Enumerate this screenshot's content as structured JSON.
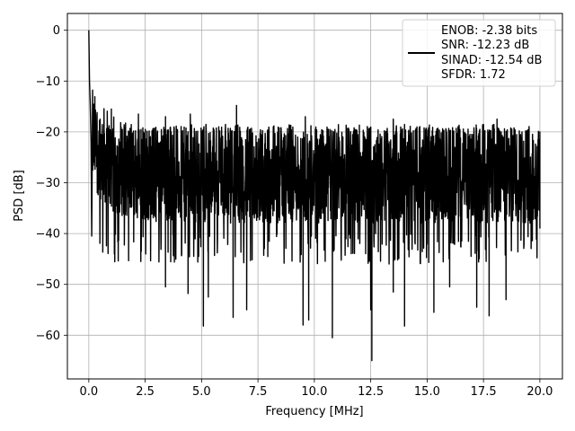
{
  "chart_data": {
    "type": "line",
    "title": "",
    "xlabel": "Frequency [MHz]",
    "ylabel": "PSD [dB]",
    "xlim": [
      -0.95,
      21.0
    ],
    "ylim": [
      -68.6,
      3.3
    ],
    "grid": true,
    "legend_position": "top-right",
    "xticks": [
      0.0,
      2.5,
      5.0,
      7.5,
      10.0,
      12.5,
      15.0,
      17.5,
      20.0
    ],
    "xtick_labels": [
      "0.0",
      "2.5",
      "5.0",
      "7.5",
      "10.0",
      "12.5",
      "15.0",
      "17.5",
      "20.0"
    ],
    "yticks": [
      0,
      -10,
      -20,
      -30,
      -40,
      -50,
      -60
    ],
    "ytick_labels": [
      "0",
      "−10",
      "−20",
      "−30",
      "−40",
      "−50",
      "−60"
    ],
    "legend_lines": [
      "ENOB: -2.38 bits",
      "SNR: -12.23 dB",
      "SINAD: -12.54 dB",
      "SFDR: 1.72"
    ],
    "series": [
      {
        "color": "#000000",
        "band": {
          "x_range": [
            0.0,
            20.0
          ],
          "upper_envelope_db": -20,
          "lower_envelope_db": -40,
          "mean_db": -28.5
        },
        "peak": {
          "x": 0.0,
          "y": 0.0
        },
        "low_spikes": [
          {
            "x": 5.08,
            "y": -58.2
          },
          {
            "x": 6.4,
            "y": -56.5
          },
          {
            "x": 7.0,
            "y": -55.0
          },
          {
            "x": 9.5,
            "y": -58.0
          },
          {
            "x": 9.75,
            "y": -57.0
          },
          {
            "x": 10.8,
            "y": -60.5
          },
          {
            "x": 12.55,
            "y": -65.0
          },
          {
            "x": 14.0,
            "y": -58.2
          },
          {
            "x": 15.3,
            "y": -55.5
          },
          {
            "x": 17.75,
            "y": -56.2
          },
          {
            "x": 3.4,
            "y": -50.5
          },
          {
            "x": 4.4,
            "y": -51.8
          },
          {
            "x": 5.3,
            "y": -52.5
          },
          {
            "x": 12.5,
            "y": -55.0
          },
          {
            "x": 13.5,
            "y": -51.5
          },
          {
            "x": 16.0,
            "y": -50.5
          },
          {
            "x": 17.2,
            "y": -54.5
          },
          {
            "x": 18.5,
            "y": -53.0
          }
        ],
        "high_spikes": [
          {
            "x": 6.55,
            "y": -14.8
          },
          {
            "x": 1.0,
            "y": -15.5
          },
          {
            "x": 2.2,
            "y": -16.5
          },
          {
            "x": 3.4,
            "y": -17.0
          },
          {
            "x": 4.5,
            "y": -16.5
          },
          {
            "x": 9.6,
            "y": -17.0
          },
          {
            "x": 13.5,
            "y": -17.5
          },
          {
            "x": 18.1,
            "y": -17.5
          }
        ]
      }
    ]
  }
}
